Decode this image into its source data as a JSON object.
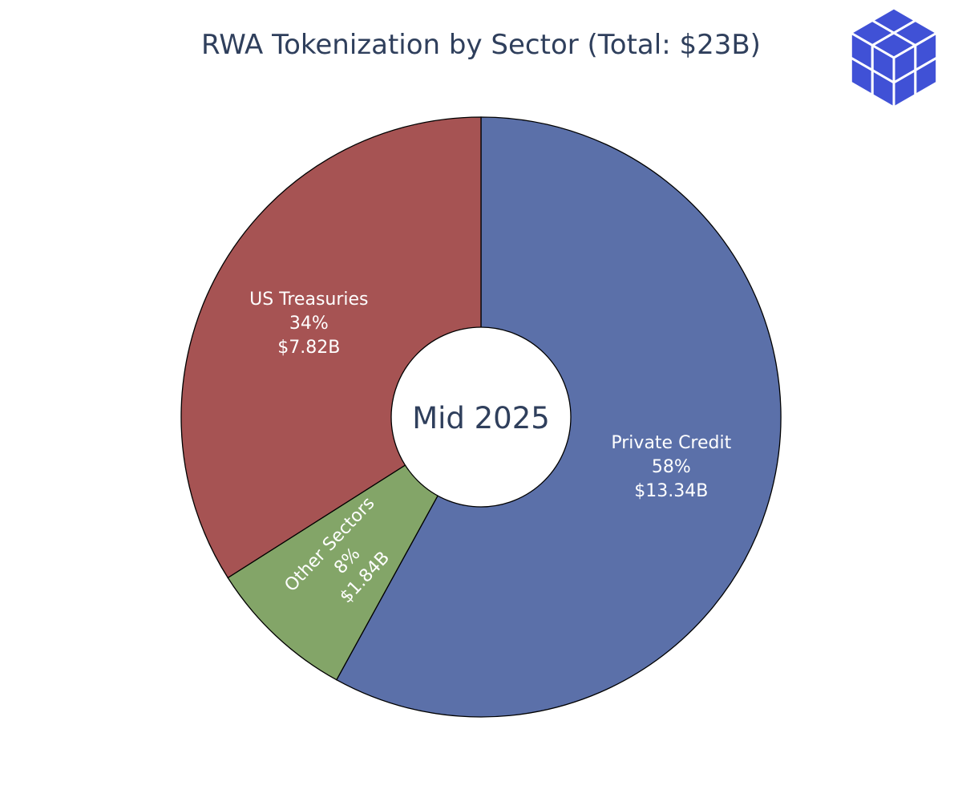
{
  "chart_data": {
    "type": "pie",
    "title": "RWA Tokenization by Sector (Total: $23B)",
    "center_text": "Mid 2025",
    "start": "top",
    "direction": "clockwise",
    "slices": [
      {
        "name": "Private Credit",
        "value": 13.34,
        "percent_label": "58%",
        "value_label": "$13.34B",
        "color": "#5b70a9"
      },
      {
        "name": "Other Sectors",
        "value": 1.84,
        "percent_label": "8%",
        "value_label": "$1.84B",
        "color": "#83a568"
      },
      {
        "name": "US Treasuries",
        "value": 7.82,
        "percent_label": "34%",
        "value_label": "$7.82B",
        "color": "#a65353"
      }
    ]
  },
  "logo": {
    "icon": "cube-grid-logo-icon",
    "color": "#4051d6"
  }
}
